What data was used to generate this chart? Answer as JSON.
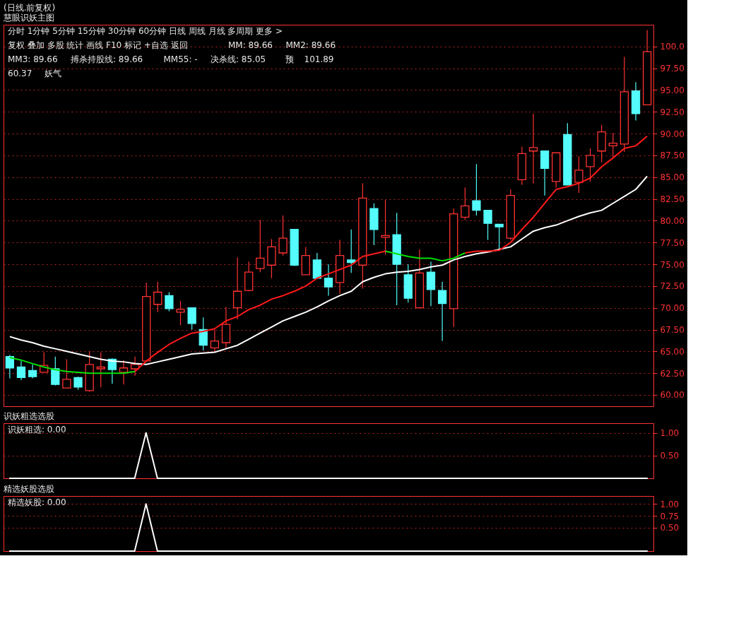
{
  "chart_data": [
    {
      "type": "candlestick",
      "title": "(日线.前复权)",
      "subtitle": "慧眼识妖主图",
      "categories": [
        null,
        null,
        null,
        null,
        null,
        null,
        null,
        null,
        null,
        null,
        null,
        null,
        null,
        null,
        null,
        null,
        null,
        null,
        null,
        null,
        null,
        null,
        null,
        null,
        null,
        null,
        null,
        null,
        null,
        null,
        null,
        null,
        null,
        null,
        null,
        null,
        null,
        null,
        null,
        null,
        null,
        null,
        null,
        null,
        null,
        null,
        null,
        null,
        null,
        null,
        null,
        null,
        null,
        null,
        null,
        null,
        null
      ],
      "ohlc": [
        [
          64.4,
          64.6,
          61.9,
          63.1
        ],
        [
          63.2,
          63.9,
          61.7,
          62.0
        ],
        [
          62.8,
          63.5,
          61.9,
          62.1
        ],
        [
          62.6,
          64.9,
          62.6,
          63.4
        ],
        [
          63.0,
          64.4,
          61.1,
          61.2
        ],
        [
          60.8,
          64.1,
          60.8,
          61.8
        ],
        [
          62.0,
          62.1,
          60.6,
          60.9
        ],
        [
          60.5,
          65.0,
          60.37,
          63.5
        ],
        [
          63.0,
          64.9,
          60.9,
          63.2
        ],
        [
          64.1,
          64.2,
          61.3,
          62.9
        ],
        [
          62.6,
          64.0,
          61.2,
          63.1
        ],
        [
          63.0,
          64.4,
          62.2,
          63.5
        ],
        [
          63.9,
          72.9,
          63.9,
          71.3
        ],
        [
          70.4,
          73.0,
          69.5,
          71.8
        ],
        [
          71.4,
          71.8,
          69.6,
          69.9
        ],
        [
          69.5,
          70.8,
          68.0,
          69.8
        ],
        [
          70.0,
          70.0,
          67.5,
          68.2
        ],
        [
          67.5,
          68.9,
          65.1,
          65.7
        ],
        [
          65.4,
          67.5,
          64.9,
          66.2
        ],
        [
          66.0,
          70.1,
          65.3,
          68.1
        ],
        [
          70.0,
          75.8,
          68.7,
          71.9
        ],
        [
          72.0,
          75.3,
          71.9,
          74.1
        ],
        [
          74.5,
          80.1,
          74.1,
          75.7
        ],
        [
          74.9,
          77.9,
          73.4,
          77.0
        ],
        [
          76.3,
          80.6,
          76.0,
          78.0
        ],
        [
          79.0,
          79.0,
          74.8,
          74.9
        ],
        [
          73.8,
          77.0,
          73.8,
          76.0
        ],
        [
          75.5,
          76.3,
          73.4,
          73.4
        ],
        [
          73.4,
          75.0,
          71.4,
          72.4
        ],
        [
          72.9,
          77.8,
          71.6,
          76.0
        ],
        [
          75.5,
          79.0,
          74.0,
          75.2
        ],
        [
          74.9,
          84.3,
          72.2,
          82.6
        ],
        [
          81.4,
          82.0,
          77.2,
          79.0
        ],
        [
          78.1,
          82.4,
          76.1,
          78.3
        ],
        [
          78.4,
          80.9,
          70.3,
          75.0
        ],
        [
          73.8,
          75.0,
          70.6,
          71.1
        ],
        [
          70.0,
          76.7,
          70.0,
          74.0
        ],
        [
          74.1,
          75.3,
          70.2,
          72.1
        ],
        [
          72.0,
          73.0,
          66.2,
          70.5
        ],
        [
          69.9,
          81.4,
          67.8,
          80.8
        ],
        [
          80.4,
          83.8,
          80.1,
          81.7
        ],
        [
          82.3,
          86.5,
          80.6,
          81.2
        ],
        [
          81.2,
          81.2,
          77.8,
          79.7
        ],
        [
          79.6,
          79.6,
          76.6,
          79.3
        ],
        [
          78.0,
          83.6,
          77.8,
          82.9
        ],
        [
          84.7,
          88.5,
          84.1,
          87.7
        ],
        [
          88.0,
          92.3,
          84.3,
          88.4
        ],
        [
          88.0,
          88.0,
          82.9,
          86.0
        ],
        [
          84.5,
          87.8,
          83.8,
          87.8
        ],
        [
          89.9,
          91.2,
          84.1,
          84.1
        ],
        [
          84.4,
          87.4,
          83.2,
          85.8
        ],
        [
          86.2,
          88.3,
          84.5,
          87.5
        ],
        [
          88.0,
          91.0,
          86.7,
          90.2
        ],
        [
          88.6,
          90.1,
          87.3,
          88.9
        ],
        [
          88.8,
          98.8,
          87.9,
          94.8
        ],
        [
          94.9,
          95.9,
          91.5,
          92.3
        ],
        [
          93.3,
          101.89,
          93.3,
          99.4
        ]
      ],
      "colors": [
        "#54fcfc",
        "#54fcfc",
        "#54fcfc",
        "#ff3232",
        "#54fcfc",
        "#ff3232",
        "#54fcfc",
        "#ff3232",
        "#ff3232",
        "#54fcfc",
        "#ff3232",
        "#ff3232",
        "#ff3232",
        "#ff3232",
        "#54fcfc",
        "#ff3232",
        "#54fcfc",
        "#54fcfc",
        "#ff3232",
        "#ff3232",
        "#ff3232",
        "#ff3232",
        "#ff3232",
        "#ff3232",
        "#ff3232",
        "#54fcfc",
        "#ff3232",
        "#54fcfc",
        "#54fcfc",
        "#ff3232",
        "#54fcfc",
        "#ff3232",
        "#54fcfc",
        "#ff3232",
        "#54fcfc",
        "#54fcfc",
        "#ff3232",
        "#54fcfc",
        "#54fcfc",
        "#ff3232",
        "#ff3232",
        "#54fcfc",
        "#54fcfc",
        "#54fcfc",
        "#ff3232",
        "#ff3232",
        "#ff3232",
        "#54fcfc",
        "#ff3232",
        "#54fcfc",
        "#ff3232",
        "#ff3232",
        "#ff3232",
        "#ff3232",
        "#ff3232",
        "#54fcfc",
        "#ff3232"
      ],
      "series": [
        {
          "type": "line",
          "color": "#ffffff",
          "values": [
            66.7,
            66.3,
            66.0,
            65.6,
            65.3,
            65.0,
            64.7,
            64.4,
            64.1,
            63.9,
            63.8,
            63.6,
            63.5,
            63.8,
            64.1,
            64.4,
            64.7,
            64.8,
            64.9,
            65.3,
            65.7,
            66.4,
            67.1,
            67.8,
            68.5,
            69.0,
            69.5,
            70.1,
            70.8,
            71.4,
            71.9,
            73.0,
            73.5,
            73.9,
            74.1,
            74.2,
            74.4,
            74.7,
            74.9,
            75.5,
            75.9,
            76.2,
            76.4,
            76.7,
            77.0,
            77.9,
            78.8,
            79.2,
            79.5,
            80.0,
            80.5,
            80.9,
            81.2,
            82.0,
            82.8,
            83.6,
            85.1
          ]
        },
        {
          "type": "line",
          "color": "#00e000",
          "values": [
            64.3,
            64.0,
            63.6,
            63.2,
            62.9,
            62.7,
            62.6,
            62.5,
            62.5,
            62.5,
            62.5,
            62.7,
            null,
            null,
            null,
            null,
            null,
            null,
            null,
            null,
            null,
            null,
            null,
            null,
            null,
            null,
            null,
            null,
            null,
            null,
            null,
            null,
            null,
            76.5,
            76.2,
            75.9,
            75.7,
            75.7,
            75.4,
            75.7,
            76.3,
            null,
            null,
            null,
            null,
            null,
            null,
            null,
            null,
            null,
            null,
            null,
            null,
            null,
            null,
            null,
            null
          ]
        },
        {
          "type": "line",
          "color": "#ff1a1a",
          "values": [
            null,
            null,
            null,
            null,
            null,
            null,
            null,
            null,
            null,
            null,
            null,
            62.7,
            63.9,
            64.9,
            65.8,
            66.5,
            67.1,
            67.3,
            67.6,
            68.5,
            69.0,
            69.8,
            70.3,
            71.0,
            71.4,
            71.9,
            72.5,
            73.4,
            73.9,
            74.4,
            74.9,
            75.9,
            76.2,
            76.5,
            null,
            null,
            null,
            null,
            null,
            null,
            76.3,
            76.5,
            76.5,
            76.6,
            77.5,
            79.0,
            80.4,
            82.0,
            83.6,
            83.9,
            84.3,
            84.9,
            86.2,
            87.2,
            88.3,
            88.6,
            89.7
          ]
        }
      ],
      "ylim": [
        58.7,
        102.5
      ],
      "yticks": [
        {
          "value": 60,
          "label": "60.00"
        },
        {
          "value": 62.5,
          "label": "62.50"
        },
        {
          "value": 65,
          "label": "65.00"
        },
        {
          "value": 67.5,
          "label": "67.50"
        },
        {
          "value": 70,
          "label": "70.00"
        },
        {
          "value": 72.5,
          "label": "72.50"
        },
        {
          "value": 75,
          "label": "75.00"
        },
        {
          "value": 77.5,
          "label": "77.50"
        },
        {
          "value": 80,
          "label": "80.00"
        },
        {
          "value": 82.5,
          "label": "82.50"
        },
        {
          "value": 85,
          "label": "85.00"
        },
        {
          "value": 87.5,
          "label": "87.50"
        },
        {
          "value": 90,
          "label": "90.00"
        },
        {
          "value": 92.5,
          "label": "92.50"
        },
        {
          "value": 95,
          "label": "95.00"
        },
        {
          "value": 97.5,
          "label": "97.50"
        },
        {
          "value": 100,
          "label": "100.0"
        }
      ],
      "grid": "y",
      "tick_labels": "y",
      "annotations": [
        "分时 1分钟 5分钟 15分钟 30分钟 60分钟 日线 周线 月线 多周期 更多 >",
        "复权 叠加 多股 统计 画线 F10 标记 +自选 返回",
        "MM: 89.66",
        "MM2: 89.66",
        "MM3: 89.66",
        "搏杀持股线: 89.66",
        "MM55: -",
        "决杀线: 85.05",
        "预",
        "101.89",
        "60.37",
        "妖气"
      ]
    },
    {
      "type": "line",
      "title": "识妖粗选选股",
      "categories": [
        null,
        null,
        null,
        null,
        null,
        null,
        null,
        null,
        null,
        null,
        null,
        null,
        null,
        null,
        null,
        null,
        null,
        null,
        null,
        null,
        null,
        null,
        null,
        null,
        null,
        null,
        null,
        null,
        null,
        null,
        null,
        null,
        null,
        null,
        null,
        null,
        null,
        null,
        null,
        null,
        null,
        null,
        null,
        null,
        null,
        null,
        null,
        null,
        null,
        null,
        null,
        null,
        null,
        null,
        null,
        null,
        null
      ],
      "series": [
        {
          "color": "#ffffff",
          "values": [
            0,
            0,
            0,
            0,
            0,
            0,
            0,
            0,
            0,
            0,
            0,
            0,
            1,
            0,
            0,
            0,
            0,
            0,
            0,
            0,
            0,
            0,
            0,
            0,
            0,
            0,
            0,
            0,
            0,
            0,
            0,
            0,
            0,
            0,
            0,
            0,
            0,
            0,
            0,
            0,
            0,
            0,
            0,
            0,
            0,
            0,
            0,
            0,
            0,
            0,
            0,
            0,
            0,
            0,
            0,
            0,
            0
          ]
        }
      ],
      "ylim": [
        0,
        1.21
      ],
      "yticks": [
        {
          "value": 0.5,
          "label": "0.50"
        },
        {
          "value": 1,
          "label": "1.00"
        }
      ],
      "grid": "y",
      "tick_labels": "y",
      "annotations": [
        "识妖粗选: 0.00"
      ]
    },
    {
      "type": "line",
      "title": "精选妖股选股",
      "categories": [
        null,
        null,
        null,
        null,
        null,
        null,
        null,
        null,
        null,
        null,
        null,
        null,
        null,
        null,
        null,
        null,
        null,
        null,
        null,
        null,
        null,
        null,
        null,
        null,
        null,
        null,
        null,
        null,
        null,
        null,
        null,
        null,
        null,
        null,
        null,
        null,
        null,
        null,
        null,
        null,
        null,
        null,
        null,
        null,
        null,
        null,
        null,
        null,
        null,
        null,
        null,
        null,
        null,
        null,
        null,
        null,
        null
      ],
      "series": [
        {
          "color": "#ffffff",
          "values": [
            0,
            0,
            0,
            0,
            0,
            0,
            0,
            0,
            0,
            0,
            0,
            0,
            1,
            0,
            0,
            0,
            0,
            0,
            0,
            0,
            0,
            0,
            0,
            0,
            0,
            0,
            0,
            0,
            0,
            0,
            0,
            0,
            0,
            0,
            0,
            0,
            0,
            0,
            0,
            0,
            0,
            0,
            0,
            0,
            0,
            0,
            0,
            0,
            0,
            0,
            0,
            0,
            0,
            0,
            0,
            0,
            0
          ]
        }
      ],
      "ylim": [
        0,
        1.17
      ],
      "yticks": [
        {
          "value": 0.5,
          "label": "0.50"
        },
        {
          "value": 0.75,
          "label": "0.75"
        },
        {
          "value": 1,
          "label": "1.00"
        }
      ],
      "grid": "y",
      "tick_labels": "y",
      "annotations": [
        "精选妖股: 0.00"
      ]
    }
  ]
}
